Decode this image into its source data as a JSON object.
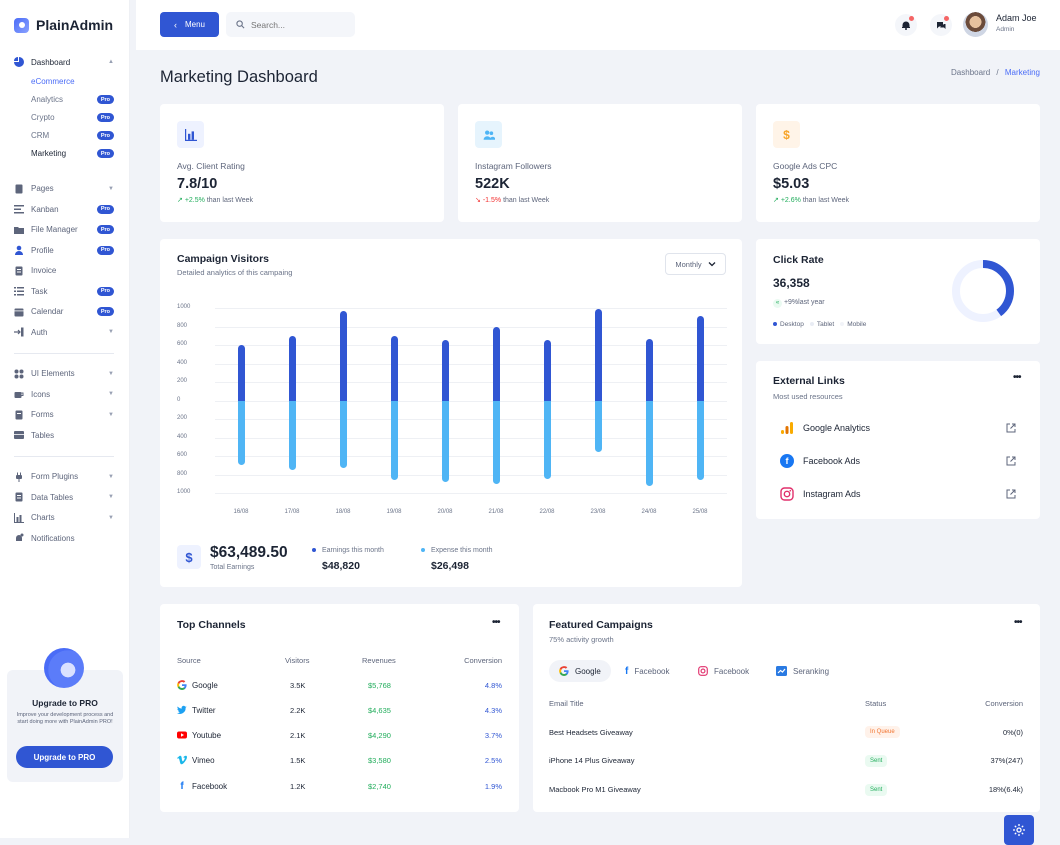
{
  "app": {
    "name": "PlainAdmin"
  },
  "sidebar": {
    "dashboard": {
      "label": "Dashboard",
      "sub": [
        {
          "label": "eCommerce"
        },
        {
          "label": "Analytics",
          "badge": "Pro"
        },
        {
          "label": "Crypto",
          "badge": "Pro"
        },
        {
          "label": "CRM",
          "badge": "Pro"
        },
        {
          "label": "Marketing",
          "badge": "Pro"
        }
      ]
    },
    "items": [
      {
        "label": "Pages"
      },
      {
        "label": "Kanban",
        "badge": "Pro"
      },
      {
        "label": "File Manager",
        "badge": "Pro"
      },
      {
        "label": "Profile",
        "badge": "Pro"
      },
      {
        "label": "Invoice"
      },
      {
        "label": "Task",
        "badge": "Pro"
      },
      {
        "label": "Calendar",
        "badge": "Pro"
      },
      {
        "label": "Auth"
      },
      {
        "label": "UI Elements"
      },
      {
        "label": "Icons"
      },
      {
        "label": "Forms"
      },
      {
        "label": "Tables"
      },
      {
        "label": "Form Plugins"
      },
      {
        "label": "Data Tables"
      },
      {
        "label": "Charts"
      },
      {
        "label": "Notifications"
      }
    ],
    "upgrade": {
      "title": "Upgrade to PRO",
      "text": "Improve your development process and start doing more with PlainAdmin PRO!",
      "button": "Upgrade to PRO"
    }
  },
  "topbar": {
    "menu_label": "Menu",
    "search_placeholder": "Search...",
    "user_name": "Adam Joe",
    "user_role": "Admin"
  },
  "page": {
    "title": "Marketing Dashboard",
    "breadcrumb": {
      "root": "Dashboard",
      "sep": "/",
      "current": "Marketing"
    }
  },
  "stats": [
    {
      "label": "Avg. Client Rating",
      "value": "7.8/10",
      "arrow": "↗",
      "change": "+2.5%",
      "suffix": "than last Week"
    },
    {
      "label": "Instagram Followers",
      "value": "522K",
      "arrow": "↘",
      "change": "-1.5%",
      "suffix": "than last Week"
    },
    {
      "label": "Google Ads CPC",
      "value": "$5.03",
      "arrow": "↗",
      "change": "+2.6%",
      "suffix": "than last Week"
    }
  ],
  "campaign": {
    "title": "Campaign Visitors",
    "subtitle": "Detailed analytics of this campaing",
    "period": "Monthly",
    "total_icon": "$",
    "total_value": "$63,489.50",
    "total_label": "Total Earnings",
    "earnings_label": "Earnings this month",
    "earnings_value": "$48,820",
    "expense_label": "Expense this month",
    "expense_value": "$26,498"
  },
  "chart_data": {
    "type": "bar",
    "categories": [
      "16/08",
      "17/08",
      "18/08",
      "19/08",
      "20/08",
      "21/08",
      "22/08",
      "23/08",
      "24/08",
      "25/08"
    ],
    "series": [
      {
        "name": "Earnings this month",
        "color": "#3056d3",
        "values": [
          600,
          700,
          970,
          700,
          650,
          800,
          650,
          990,
          670,
          910
        ]
      },
      {
        "name": "Expense this month",
        "color": "#4fb5f5",
        "values": [
          -700,
          -750,
          -730,
          -860,
          -880,
          -900,
          -850,
          -560,
          -920,
          -860
        ]
      }
    ],
    "yticks": [
      "1000",
      "800",
      "600",
      "400",
      "200",
      "0",
      "200",
      "400",
      "600",
      "800",
      "1000"
    ],
    "ylim": [
      -1000,
      1000
    ]
  },
  "click_rate": {
    "title": "Click Rate",
    "value": "36,358",
    "change_icon": "«",
    "change": "+9%",
    "change_suffix": "last year",
    "legend": [
      "Desktop",
      "Tablet",
      "Mobile"
    ],
    "donut_fraction": 0.4
  },
  "external_links": {
    "title": "External Links",
    "subtitle": "Most used resources",
    "items": [
      {
        "label": "Google Analytics"
      },
      {
        "label": "Facebook Ads"
      },
      {
        "label": "Instagram Ads"
      }
    ]
  },
  "top_channels": {
    "title": "Top Channels",
    "headers": [
      "Source",
      "Visitors",
      "Revenues",
      "Conversion"
    ],
    "rows": [
      {
        "source": "Google",
        "visitors": "3.5K",
        "revenue": "$5,768",
        "conversion": "4.8%"
      },
      {
        "source": "Twitter",
        "visitors": "2.2K",
        "revenue": "$4,635",
        "conversion": "4.3%"
      },
      {
        "source": "Youtube",
        "visitors": "2.1K",
        "revenue": "$4,290",
        "conversion": "3.7%"
      },
      {
        "source": "Vimeo",
        "visitors": "1.5K",
        "revenue": "$3,580",
        "conversion": "2.5%"
      },
      {
        "source": "Facebook",
        "visitors": "1.2K",
        "revenue": "$2,740",
        "conversion": "1.9%"
      }
    ]
  },
  "featured": {
    "title": "Featured Campaigns",
    "subtitle": "75% activity growth",
    "tabs": [
      "Google",
      "Facebook",
      "Facebook",
      "Seranking"
    ],
    "headers": [
      "Email Title",
      "Status",
      "Conversion"
    ],
    "rows": [
      {
        "title": "Best Headsets Giveaway",
        "status": "In Queue",
        "conversion": "0%(0)"
      },
      {
        "title": "iPhone 14 Plus Giveaway",
        "status": "Sent",
        "conversion": "37%(247)"
      },
      {
        "title": "Macbook Pro M1 Giveaway",
        "status": "Sent",
        "conversion": "18%(6.4k)"
      }
    ]
  },
  "colors": {
    "primary": "#3056d3",
    "accent": "#4a6cf7",
    "success": "#22ad5c",
    "danger": "#f23030",
    "sky": "#4fb5f5"
  }
}
